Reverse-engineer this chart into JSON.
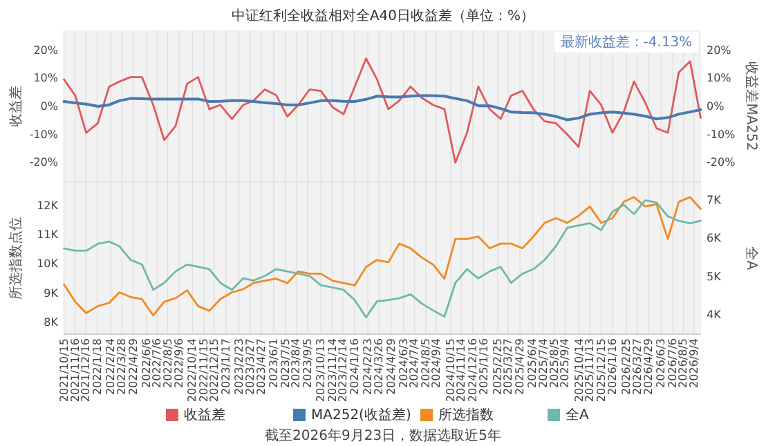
{
  "chart_data": [
    {
      "type": "line",
      "title": "中证红利全收益相对全A40日收益差（单位：%）",
      "ylabel": "收益差",
      "y2label": "收益差MA252",
      "annotations": [
        "最新收益差：-4.13%"
      ],
      "x": [
        "2021-10-15",
        "2021-11-16",
        "2021-12-17",
        "2022-01-19",
        "2022-02-20",
        "2022-03-21",
        "2022-04-22",
        "2022-05-24",
        "2022-06-25",
        "2022-07-26",
        "2022-08-27",
        "2022-09-29",
        "2022-10-30",
        "2022-12-01",
        "2023-01-01",
        "2023-02-03",
        "2023-03-07",
        "2023-04-05",
        "2023-05-07",
        "2023-06-08",
        "2023-07-10",
        "2023-08-10",
        "2023-09-11",
        "2023-10-13",
        "2023-11-15",
        "2023-12-16",
        "2024-01-17",
        "2024-02-18",
        "2024-03-20",
        "2024-04-21",
        "2024-05-22",
        "2024-06-23",
        "2024-07-25",
        "2024-08-26",
        "2024-09-27",
        "2024-10-28",
        "2024-11-30",
        "2025-01-01",
        "2025-02-02",
        "2025-03-05",
        "2025-04-04",
        "2025-05-06",
        "2025-06-06",
        "2025-07-08",
        "2025-08-09",
        "2025-09-10",
        "2025-10-12",
        "2025-11-13",
        "2025-12-15",
        "2026-01-16",
        "2026-02-17",
        "2026-03-18",
        "2026-04-19",
        "2026-05-21",
        "2026-06-22",
        "2026-07-23",
        "2026-08-24",
        "2026-09-23"
      ],
      "series": [
        {
          "name": "收益差",
          "color": "#e05a5a",
          "values": [
            9.6,
            3.8,
            -9.4,
            -6,
            7,
            8.8,
            10.4,
            10.4,
            0.5,
            -12,
            -7,
            8,
            10.4,
            -1,
            0.5,
            -4.5,
            0.5,
            2,
            6,
            4,
            -3.6,
            0.5,
            6,
            5.5,
            -0.3,
            -2.8,
            7,
            17,
            9.6,
            -1,
            2,
            7,
            3,
            0.5,
            -1,
            -20,
            -9.4,
            7,
            -1,
            -4.5,
            3.8,
            5.5,
            -1,
            -5.3,
            -6,
            -10,
            -14.4,
            5.5,
            0.5,
            -9.4,
            -2,
            8.8,
            1.3,
            -7.8,
            -9.4,
            12,
            16,
            -4.13
          ]
        },
        {
          "name": "MA252(收益差)",
          "color": "#4a7ab0",
          "axis": "y2",
          "values": [
            1.7,
            1.2,
            0.8,
            0,
            0.5,
            2,
            2.8,
            2.7,
            2.6,
            2.6,
            2.6,
            2.6,
            2.6,
            1.7,
            1.8,
            2,
            2,
            1.7,
            1.3,
            1,
            0.5,
            0.5,
            1.2,
            2,
            2,
            1.8,
            1.7,
            2.5,
            3.6,
            3.4,
            3.3,
            3.6,
            3.8,
            3.8,
            3.6,
            2.8,
            2,
            0.2,
            0.2,
            -0.8,
            -2,
            -2.2,
            -2.3,
            -2.8,
            -3.6,
            -4.8,
            -4.2,
            -2.8,
            -2.3,
            -2,
            -2.4,
            -2.8,
            -3.5,
            -4.5,
            -4,
            -2.8,
            -2,
            -1.2
          ]
        }
      ],
      "xlim": [
        "2021-10-14",
        "2026-09-24"
      ],
      "xticks": [
        {
          "value": "2021-10-15",
          "label": null
        },
        {
          "value": "2021-11-16",
          "label": null
        },
        {
          "value": "2021-12-16",
          "label": null
        },
        {
          "value": "2022-01-18",
          "label": null
        },
        {
          "value": "2022-02-24",
          "label": null
        },
        {
          "value": "2022-03-28",
          "label": null
        },
        {
          "value": "2022-04-29",
          "label": null
        },
        {
          "value": "2022-06-06",
          "label": null
        },
        {
          "value": "2022-07-06",
          "label": null
        },
        {
          "value": "2022-08-05",
          "label": null
        },
        {
          "value": "2022-09-06",
          "label": null
        },
        {
          "value": "2022-10-14",
          "label": null
        },
        {
          "value": "2022-11-15",
          "label": null
        },
        {
          "value": "2022-12-15",
          "label": null
        },
        {
          "value": "2023-01-17",
          "label": null
        },
        {
          "value": "2023-02-23",
          "label": null
        },
        {
          "value": "2023-03-27",
          "label": null
        },
        {
          "value": "2023-04-27",
          "label": null
        },
        {
          "value": "2023-06-01",
          "label": null
        },
        {
          "value": "2023-07-05",
          "label": null
        },
        {
          "value": "2023-08-04",
          "label": null
        },
        {
          "value": "2023-09-05",
          "label": null
        },
        {
          "value": "2023-10-13",
          "label": null
        },
        {
          "value": "2023-11-14",
          "label": null
        },
        {
          "value": "2023-12-14",
          "label": null
        },
        {
          "value": "2024-01-16",
          "label": null
        },
        {
          "value": "2024-02-23",
          "label": null
        },
        {
          "value": "2024-03-26",
          "label": null
        },
        {
          "value": "2024-04-29",
          "label": null
        },
        {
          "value": "2024-06-03",
          "label": null
        },
        {
          "value": "2024-07-04",
          "label": null
        },
        {
          "value": "2024-08-05",
          "label": null
        },
        {
          "value": "2024-09-04",
          "label": null
        },
        {
          "value": "2024-10-15",
          "label": null
        },
        {
          "value": "2024-11-14",
          "label": null
        },
        {
          "value": "2024-12-16",
          "label": null
        },
        {
          "value": "2025-01-16",
          "label": null
        },
        {
          "value": "2025-02-25",
          "label": null
        },
        {
          "value": "2025-03-27",
          "label": null
        },
        {
          "value": "2025-04-29",
          "label": null
        },
        {
          "value": "2025-06-04",
          "label": null
        },
        {
          "value": "2025-07-04",
          "label": null
        },
        {
          "value": "2025-08-05",
          "label": null
        },
        {
          "value": "2025-09-04",
          "label": null
        },
        {
          "value": "2025-10-14",
          "label": null
        },
        {
          "value": "2025-11-13",
          "label": null
        },
        {
          "value": "2025-12-15",
          "label": null
        },
        {
          "value": "2026-01-16",
          "label": null
        },
        {
          "value": "2026-02-25",
          "label": null
        },
        {
          "value": "2026-03-27",
          "label": null
        },
        {
          "value": "2026-04-29",
          "label": null
        },
        {
          "value": "2026-06-03",
          "label": null
        },
        {
          "value": "2026-07-06",
          "label": null
        },
        {
          "value": "2026-08-05",
          "label": null
        },
        {
          "value": "2026-09-04",
          "label": null
        }
      ],
      "ylim": [
        -27,
        27
      ],
      "yticks": [
        {
          "value": -20,
          "label": "-20%"
        },
        {
          "value": -10,
          "label": "-10%"
        },
        {
          "value": 0,
          "label": "0%"
        },
        {
          "value": 10,
          "label": "10%"
        },
        {
          "value": 20,
          "label": "20%"
        }
      ],
      "y2lim": [
        -27,
        27
      ],
      "y2ticks": [
        {
          "value": -20,
          "label": "-20%"
        },
        {
          "value": -10,
          "label": "-10%"
        },
        {
          "value": 0,
          "label": "0%"
        },
        {
          "value": 10,
          "label": "10%"
        },
        {
          "value": 20,
          "label": "20%"
        }
      ],
      "tick_labels": "y",
      "grid": "x",
      "legend": "bottom"
    },
    {
      "type": "line",
      "ylabel": "所选指数点位",
      "y2label": "全A",
      "annotations": [
        "截至2026年9月23日，数据选取近5年"
      ],
      "x": [
        "2021-10-15",
        "2021-11-16",
        "2021-12-17",
        "2022-01-19",
        "2022-02-20",
        "2022-03-21",
        "2022-04-22",
        "2022-05-24",
        "2022-06-25",
        "2022-07-26",
        "2022-08-27",
        "2022-09-29",
        "2022-10-30",
        "2022-12-01",
        "2023-01-01",
        "2023-02-03",
        "2023-03-07",
        "2023-04-05",
        "2023-05-07",
        "2023-06-08",
        "2023-07-10",
        "2023-08-10",
        "2023-09-11",
        "2023-10-13",
        "2023-11-15",
        "2023-12-16",
        "2024-01-17",
        "2024-02-18",
        "2024-03-20",
        "2024-04-21",
        "2024-05-22",
        "2024-06-23",
        "2024-07-25",
        "2024-08-26",
        "2024-09-27",
        "2024-10-28",
        "2024-11-30",
        "2025-01-01",
        "2025-02-02",
        "2025-03-05",
        "2025-04-04",
        "2025-05-06",
        "2025-06-06",
        "2025-07-08",
        "2025-08-09",
        "2025-09-10",
        "2025-10-12",
        "2025-11-13",
        "2025-12-15",
        "2026-01-16",
        "2026-02-17",
        "2026-03-18",
        "2026-04-19",
        "2026-05-21",
        "2026-06-22",
        "2026-07-23",
        "2026-08-24",
        "2026-09-23"
      ],
      "series": [
        {
          "name": "所选指数",
          "color": "#f08a24",
          "values": [
            9300,
            8710,
            8320,
            8560,
            8670,
            9030,
            8870,
            8800,
            8240,
            8710,
            8830,
            9100,
            8560,
            8400,
            8800,
            9030,
            9140,
            9350,
            9430,
            9500,
            9350,
            9750,
            9670,
            9670,
            9430,
            9350,
            9270,
            9900,
            10140,
            10060,
            10700,
            10540,
            10220,
            9980,
            9500,
            10860,
            10860,
            10940,
            10540,
            10700,
            10700,
            10540,
            10940,
            11410,
            11570,
            11410,
            11650,
            11970,
            11410,
            11570,
            12130,
            12290,
            11970,
            12050,
            10860,
            12130,
            12290,
            11890
          ]
        },
        {
          "name": "全A",
          "color": "#6fb8ad",
          "axis": "y2",
          "values": [
            5740,
            5680,
            5680,
            5860,
            5920,
            5800,
            5440,
            5320,
            4660,
            4840,
            5140,
            5320,
            5260,
            5200,
            4840,
            4660,
            4960,
            4900,
            5020,
            5200,
            5140,
            5080,
            5020,
            4780,
            4720,
            4660,
            4390,
            3940,
            4360,
            4390,
            4440,
            4540,
            4300,
            4120,
            3960,
            4840,
            5200,
            4960,
            5140,
            5260,
            4840,
            5080,
            5200,
            5440,
            5800,
            6280,
            6340,
            6400,
            6220,
            6700,
            6880,
            6640,
            7000,
            6940,
            6580,
            6460,
            6400,
            6460
          ]
        }
      ],
      "xlim": [
        "2021-10-14",
        "2026-09-24"
      ],
      "xticks": [
        {
          "value": "2021-10-15",
          "label": "2021/10/15"
        },
        {
          "value": "2021-11-16",
          "label": "2021/11/16"
        },
        {
          "value": "2021-12-16",
          "label": "2021/12/16"
        },
        {
          "value": "2022-01-18",
          "label": "2022/1/18"
        },
        {
          "value": "2022-02-24",
          "label": "2022/2/24"
        },
        {
          "value": "2022-03-28",
          "label": "2022/3/28"
        },
        {
          "value": "2022-04-29",
          "label": "2022/4/29"
        },
        {
          "value": "2022-06-06",
          "label": "2022/6/6"
        },
        {
          "value": "2022-07-06",
          "label": "2022/7/6"
        },
        {
          "value": "2022-08-05",
          "label": "2022/8/5"
        },
        {
          "value": "2022-09-06",
          "label": "2022/9/6"
        },
        {
          "value": "2022-10-14",
          "label": "2022/10/14"
        },
        {
          "value": "2022-11-15",
          "label": "2022/11/15"
        },
        {
          "value": "2022-12-15",
          "label": "2022/12/15"
        },
        {
          "value": "2023-01-17",
          "label": "2023/1/17"
        },
        {
          "value": "2023-02-23",
          "label": "2023/2/23"
        },
        {
          "value": "2023-03-27",
          "label": "2023/3/27"
        },
        {
          "value": "2023-04-27",
          "label": "2023/4/27"
        },
        {
          "value": "2023-06-01",
          "label": "2023/6/1"
        },
        {
          "value": "2023-07-05",
          "label": "2023/7/5"
        },
        {
          "value": "2023-08-04",
          "label": "2023/8/4"
        },
        {
          "value": "2023-09-05",
          "label": "2023/9/5"
        },
        {
          "value": "2023-10-13",
          "label": "2023/10/13"
        },
        {
          "value": "2023-11-14",
          "label": "2023/11/14"
        },
        {
          "value": "2023-12-14",
          "label": "2023/12/14"
        },
        {
          "value": "2024-01-16",
          "label": "2024/1/16"
        },
        {
          "value": "2024-02-23",
          "label": "2024/2/23"
        },
        {
          "value": "2024-03-26",
          "label": "2024/3/26"
        },
        {
          "value": "2024-04-29",
          "label": "2024/4/29"
        },
        {
          "value": "2024-06-03",
          "label": "2024/6/3"
        },
        {
          "value": "2024-07-04",
          "label": "2024/7/4"
        },
        {
          "value": "2024-08-05",
          "label": "2024/8/5"
        },
        {
          "value": "2024-09-04",
          "label": "2024/9/4"
        },
        {
          "value": "2024-10-15",
          "label": "2024/10/15"
        },
        {
          "value": "2024-11-14",
          "label": "2024/11/14"
        },
        {
          "value": "2024-12-16",
          "label": "2024/12/16"
        },
        {
          "value": "2025-01-16",
          "label": "2025/1/16"
        },
        {
          "value": "2025-02-25",
          "label": "2025/2/25"
        },
        {
          "value": "2025-03-27",
          "label": "2025/3/27"
        },
        {
          "value": "2025-04-29",
          "label": "2025/4/29"
        },
        {
          "value": "2025-06-04",
          "label": "2025/6/4"
        },
        {
          "value": "2025-07-04",
          "label": "2025/7/4"
        },
        {
          "value": "2025-08-05",
          "label": "2025/8/5"
        },
        {
          "value": "2025-09-04",
          "label": "2025/9/4"
        },
        {
          "value": "2025-10-14",
          "label": "2025/10/14"
        },
        {
          "value": "2025-11-13",
          "label": "2025/11/13"
        },
        {
          "value": "2025-12-15",
          "label": "2025/12/15"
        },
        {
          "value": "2026-01-16",
          "label": "2026/1/16"
        },
        {
          "value": "2026-02-25",
          "label": "2026/2/25"
        },
        {
          "value": "2026-03-27",
          "label": "2026/3/27"
        },
        {
          "value": "2026-04-29",
          "label": "2026/4/29"
        },
        {
          "value": "2026-06-03",
          "label": "2026/6/3"
        },
        {
          "value": "2026-07-06",
          "label": "2026/7/6"
        },
        {
          "value": "2026-08-05",
          "label": "2026/8/5"
        },
        {
          "value": "2026-09-04",
          "label": "2026/9/4"
        }
      ],
      "ylim": [
        7600,
        12800
      ],
      "yticks": [
        {
          "value": 8000,
          "label": "8K"
        },
        {
          "value": 9000,
          "label": "9K"
        },
        {
          "value": 10000,
          "label": "10K"
        },
        {
          "value": 11000,
          "label": "11K"
        },
        {
          "value": 12000,
          "label": "12K"
        }
      ],
      "y2lim": [
        3500,
        7470
      ],
      "y2ticks": [
        {
          "value": 4000,
          "label": "4K"
        },
        {
          "value": 5000,
          "label": "5K"
        },
        {
          "value": 6000,
          "label": "6K"
        },
        {
          "value": 7000,
          "label": "7K"
        }
      ],
      "grid": "x",
      "legend": "bottom"
    }
  ]
}
